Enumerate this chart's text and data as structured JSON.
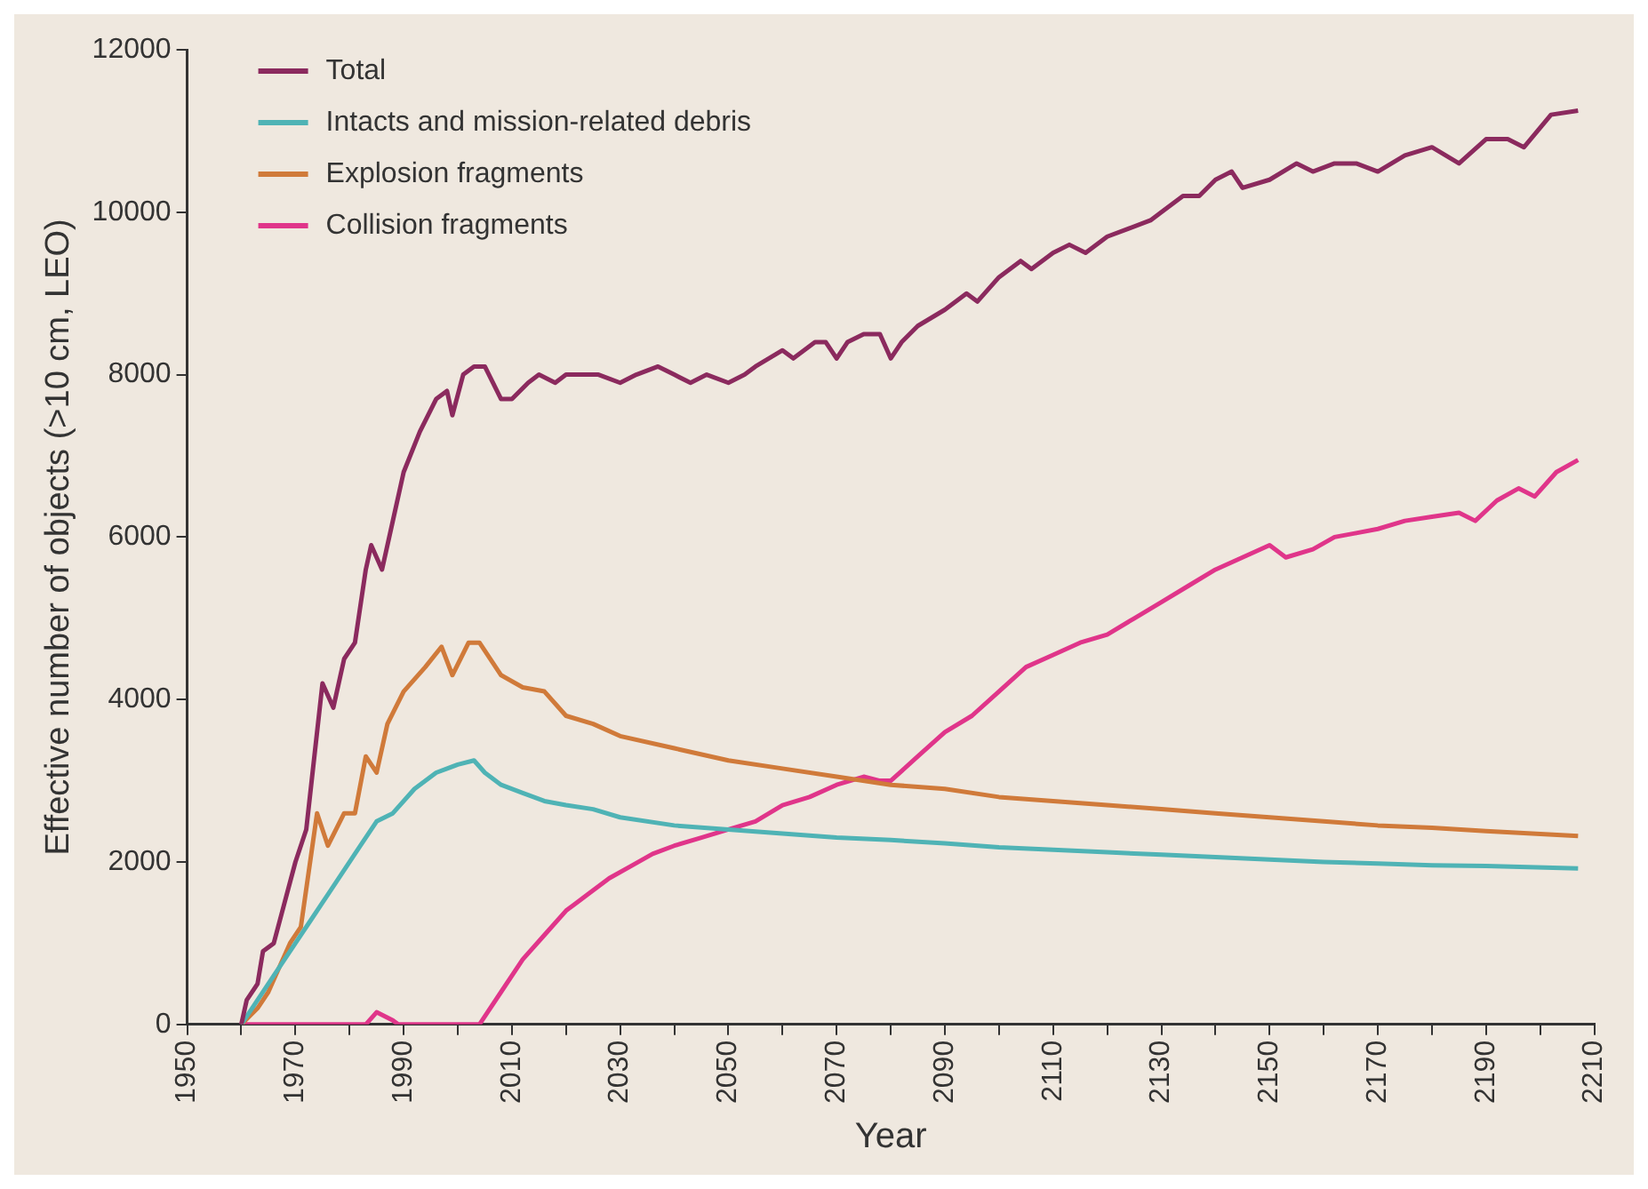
{
  "chart_data": {
    "type": "line",
    "xlabel": "Year",
    "ylabel": "Effective number of objects (>10 cm, LEO)",
    "xlim": [
      1950,
      2210
    ],
    "ylim": [
      0,
      12000
    ],
    "xticks": [
      1950,
      {
        "value": 1960,
        "label": null
      },
      1970,
      {
        "value": 1980,
        "label": null
      },
      1990,
      {
        "value": 2000,
        "label": null
      },
      2010,
      {
        "value": 2020,
        "label": null
      },
      2030,
      {
        "value": 2040,
        "label": null
      },
      2050,
      {
        "value": 2060,
        "label": null
      },
      2070,
      {
        "value": 2080,
        "label": null
      },
      2090,
      {
        "value": 2100,
        "label": null
      },
      2110,
      {
        "value": 2120,
        "label": null
      },
      2130,
      {
        "value": 2140,
        "label": null
      },
      2150,
      {
        "value": 2160,
        "label": null
      },
      2170,
      {
        "value": 2180,
        "label": null
      },
      2190,
      {
        "value": 2200,
        "label": null
      },
      2210
    ],
    "yticks": [
      0,
      2000,
      4000,
      6000,
      8000,
      10000,
      12000
    ],
    "grid": false,
    "legend": "top left",
    "marker": "none",
    "line_style": "solid",
    "series": [
      {
        "name": "Total",
        "color": "#8b2a5e",
        "x": [
          1960,
          1961,
          1963,
          1964,
          1966,
          1968,
          1970,
          1972,
          1973,
          1975,
          1977,
          1979,
          1981,
          1983,
          1984,
          1986,
          1988,
          1990,
          1993,
          1996,
          1998,
          1999,
          2001,
          2003,
          2005,
          2008,
          2010,
          2013,
          2015,
          2018,
          2020,
          2023,
          2026,
          2030,
          2033,
          2037,
          2040,
          2043,
          2046,
          2050,
          2053,
          2055,
          2060,
          2062,
          2066,
          2068,
          2070,
          2072,
          2075,
          2078,
          2080,
          2082,
          2085,
          2090,
          2094,
          2096,
          2100,
          2104,
          2106,
          2110,
          2113,
          2116,
          2120,
          2124,
          2128,
          2130,
          2134,
          2137,
          2140,
          2143,
          2145,
          2150,
          2155,
          2158,
          2162,
          2166,
          2170,
          2175,
          2180,
          2185,
          2190,
          2194,
          2197,
          2202,
          2207
        ],
        "values": [
          0,
          300,
          500,
          900,
          1000,
          1500,
          2000,
          2400,
          3000,
          4200,
          3900,
          4500,
          4700,
          5600,
          5900,
          5600,
          6200,
          6800,
          7300,
          7700,
          7800,
          7500,
          8000,
          8100,
          8100,
          7700,
          7700,
          7900,
          8000,
          7900,
          8000,
          8000,
          8000,
          7900,
          8000,
          8100,
          8000,
          7900,
          8000,
          7900,
          8000,
          8100,
          8300,
          8200,
          8400,
          8400,
          8200,
          8400,
          8500,
          8500,
          8200,
          8400,
          8600,
          8800,
          9000,
          8900,
          9200,
          9400,
          9300,
          9500,
          9600,
          9500,
          9700,
          9800,
          9900,
          10000,
          10200,
          10200,
          10400,
          10500,
          10300,
          10400,
          10600,
          10500,
          10600,
          10600,
          10500,
          10700,
          10800,
          10600,
          10900,
          10900,
          10800,
          11200,
          11250
        ]
      },
      {
        "name": "Intacts and mission-related debris",
        "color": "#4fb3b5",
        "x": [
          1960,
          1963,
          1966,
          1970,
          1973,
          1976,
          1979,
          1982,
          1985,
          1988,
          1992,
          1996,
          2000,
          2003,
          2005,
          2008,
          2012,
          2016,
          2020,
          2025,
          2030,
          2040,
          2050,
          2060,
          2070,
          2080,
          2090,
          2100,
          2110,
          2120,
          2130,
          2140,
          2150,
          2160,
          2170,
          2180,
          2190,
          2207
        ],
        "values": [
          0,
          300,
          600,
          1000,
          1300,
          1600,
          1900,
          2200,
          2500,
          2600,
          2900,
          3100,
          3200,
          3250,
          3100,
          2950,
          2850,
          2750,
          2700,
          2650,
          2550,
          2450,
          2400,
          2350,
          2300,
          2270,
          2230,
          2180,
          2150,
          2120,
          2090,
          2060,
          2030,
          2000,
          1980,
          1960,
          1950,
          1920
        ]
      },
      {
        "name": "Explosion fragments",
        "color": "#d07a3a",
        "x": [
          1960,
          1963,
          1965,
          1967,
          1969,
          1971,
          1974,
          1976,
          1979,
          1981,
          1983,
          1985,
          1987,
          1990,
          1994,
          1997,
          1999,
          2002,
          2004,
          2008,
          2012,
          2016,
          2020,
          2025,
          2030,
          2040,
          2050,
          2060,
          2070,
          2080,
          2090,
          2100,
          2110,
          2120,
          2130,
          2140,
          2150,
          2160,
          2170,
          2180,
          2190,
          2207
        ],
        "values": [
          0,
          200,
          400,
          700,
          1000,
          1200,
          2600,
          2200,
          2600,
          2600,
          3300,
          3100,
          3700,
          4100,
          4400,
          4650,
          4300,
          4700,
          4700,
          4300,
          4150,
          4100,
          3800,
          3700,
          3550,
          3400,
          3250,
          3150,
          3050,
          2950,
          2900,
          2800,
          2750,
          2700,
          2650,
          2600,
          2550,
          2500,
          2450,
          2420,
          2380,
          2320
        ]
      },
      {
        "name": "Collision fragments",
        "color": "#e0358a",
        "x": [
          1960,
          1983,
          1985,
          1988,
          1989,
          2004,
          2008,
          2012,
          2016,
          2020,
          2024,
          2028,
          2032,
          2036,
          2040,
          2045,
          2050,
          2055,
          2060,
          2065,
          2070,
          2075,
          2078,
          2080,
          2085,
          2090,
          2095,
          2100,
          2105,
          2110,
          2115,
          2120,
          2125,
          2130,
          2135,
          2140,
          2145,
          2150,
          2153,
          2158,
          2162,
          2166,
          2170,
          2175,
          2180,
          2185,
          2188,
          2192,
          2196,
          2199,
          2203,
          2207
        ],
        "values": [
          0,
          0,
          150,
          50,
          0,
          0,
          400,
          800,
          1100,
          1400,
          1600,
          1800,
          1950,
          2100,
          2200,
          2300,
          2400,
          2500,
          2700,
          2800,
          2950,
          3050,
          3000,
          3000,
          3300,
          3600,
          3800,
          4100,
          4400,
          4550,
          4700,
          4800,
          5000,
          5200,
          5400,
          5600,
          5750,
          5900,
          5750,
          5850,
          6000,
          6050,
          6100,
          6200,
          6250,
          6300,
          6200,
          6450,
          6600,
          6500,
          6800,
          6950
        ]
      }
    ]
  }
}
